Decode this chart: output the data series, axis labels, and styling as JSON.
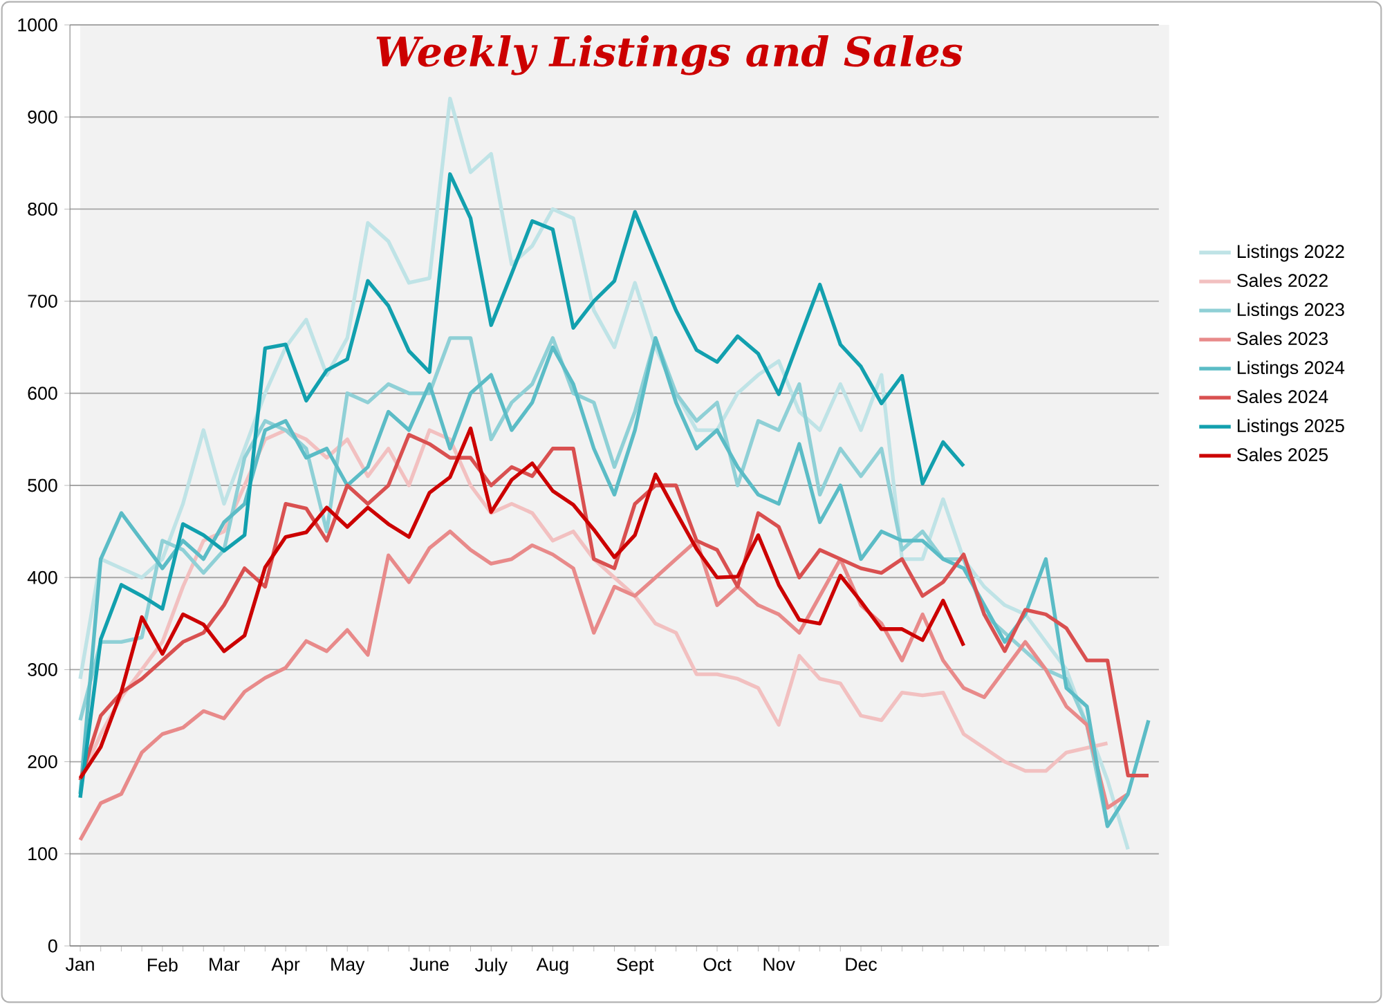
{
  "chart_data": {
    "type": "line",
    "title": "Weekly Listings and Sales",
    "categories": [
      "Jan",
      null,
      null,
      null,
      "Feb",
      null,
      null,
      "Mar",
      null,
      null,
      "Apr",
      null,
      null,
      "May",
      null,
      null,
      null,
      "June",
      null,
      null,
      "July",
      null,
      null,
      "Aug",
      null,
      null,
      null,
      "Sept",
      null,
      null,
      null,
      "Oct",
      null,
      null,
      "Nov",
      null,
      null,
      null,
      "Dec",
      null,
      null,
      null,
      null,
      null,
      null,
      null,
      null,
      null,
      null,
      null,
      null,
      null,
      null
    ],
    "ylim": [
      0,
      1000
    ],
    "yticks": [
      0,
      100,
      200,
      300,
      400,
      500,
      600,
      700,
      800,
      900,
      1000
    ],
    "grid": "y",
    "legend": "right",
    "marker": "none",
    "line_style": "solid",
    "series": [
      {
        "name": "Listings 2022",
        "color": "#bfe3e6",
        "values": [
          290,
          420,
          410,
          400,
          420,
          480,
          560,
          480,
          540,
          600,
          650,
          680,
          620,
          660,
          785,
          765,
          720,
          725,
          920,
          840,
          860,
          740,
          760,
          800,
          790,
          690,
          650,
          720,
          650,
          600,
          560,
          560,
          600,
          620,
          635,
          580,
          560,
          610,
          560,
          620,
          420,
          420,
          485,
          420,
          390,
          370,
          360,
          330,
          300,
          240,
          180,
          105,
          null
        ]
      },
      {
        "name": "Sales 2022",
        "color": "#f2c0c0",
        "values": [
          180,
          230,
          270,
          300,
          330,
          390,
          440,
          450,
          500,
          550,
          560,
          550,
          530,
          550,
          510,
          540,
          500,
          560,
          550,
          500,
          470,
          480,
          470,
          440,
          450,
          420,
          400,
          380,
          350,
          340,
          295,
          295,
          290,
          280,
          240,
          315,
          290,
          285,
          250,
          245,
          275,
          272,
          275,
          230,
          215,
          200,
          190,
          190,
          210,
          215,
          220,
          null,
          null
        ]
      },
      {
        "name": "Listings 2023",
        "color": "#8fd0d6",
        "values": [
          245,
          330,
          330,
          335,
          440,
          430,
          405,
          430,
          530,
          570,
          560,
          540,
          450,
          600,
          590,
          610,
          600,
          600,
          660,
          660,
          550,
          590,
          610,
          660,
          600,
          590,
          520,
          580,
          660,
          600,
          570,
          590,
          500,
          570,
          560,
          610,
          490,
          540,
          510,
          540,
          430,
          450,
          420,
          420,
          360,
          340,
          320,
          300,
          290,
          240,
          130,
          165,
          null
        ]
      },
      {
        "name": "Sales 2023",
        "color": "#e88a8a",
        "values": [
          115,
          155,
          165,
          210,
          230,
          237,
          255,
          247,
          276,
          291,
          302,
          331,
          320,
          343,
          316,
          424,
          395,
          432,
          450,
          430,
          415,
          420,
          435,
          425,
          410,
          340,
          390,
          380,
          400,
          420,
          440,
          370,
          390,
          370,
          360,
          340,
          380,
          420,
          370,
          350,
          310,
          360,
          310,
          280,
          270,
          300,
          330,
          300,
          260,
          240,
          150,
          165,
          null
        ]
      },
      {
        "name": "Listings 2024",
        "color": "#5bbcc6",
        "values": [
          165,
          420,
          470,
          440,
          410,
          440,
          420,
          460,
          480,
          560,
          570,
          530,
          540,
          500,
          520,
          580,
          560,
          610,
          540,
          600,
          620,
          560,
          590,
          650,
          610,
          540,
          490,
          560,
          660,
          590,
          540,
          560,
          520,
          490,
          480,
          545,
          460,
          500,
          420,
          450,
          440,
          440,
          420,
          410,
          370,
          330,
          360,
          420,
          280,
          260,
          130,
          165,
          245
        ]
      },
      {
        "name": "Sales 2024",
        "color": "#d95050",
        "values": [
          180,
          250,
          275,
          290,
          310,
          330,
          340,
          370,
          410,
          390,
          480,
          475,
          440,
          500,
          480,
          500,
          555,
          545,
          530,
          530,
          500,
          520,
          510,
          540,
          540,
          420,
          410,
          480,
          500,
          500,
          440,
          430,
          390,
          470,
          455,
          400,
          430,
          420,
          410,
          405,
          420,
          380,
          395,
          425,
          360,
          320,
          365,
          360,
          345,
          310,
          310,
          185,
          185
        ]
      },
      {
        "name": "Listings 2025",
        "color": "#12a0ae",
        "values": [
          161,
          333,
          392,
          380,
          366,
          458,
          446,
          429,
          446,
          649,
          653,
          592,
          625,
          637,
          722,
          695,
          646,
          623,
          838,
          790,
          674,
          730,
          787,
          778,
          671,
          700,
          722,
          797,
          743,
          690,
          647,
          634,
          662,
          643,
          599,
          659,
          718,
          653,
          629,
          589,
          619,
          502,
          547,
          521,
          null,
          null,
          null,
          null,
          null,
          null,
          null,
          null,
          null
        ]
      },
      {
        "name": "Sales 2025",
        "color": "#cc0000",
        "values": [
          182,
          216,
          276,
          357,
          317,
          360,
          349,
          320,
          337,
          411,
          444,
          449,
          476,
          455,
          476,
          458,
          444,
          492,
          509,
          562,
          471,
          506,
          524,
          494,
          479,
          452,
          422,
          446,
          512,
          471,
          431,
          400,
          401,
          446,
          392,
          354,
          350,
          402,
          374,
          344,
          344,
          332,
          375,
          326,
          null,
          null,
          null,
          null,
          null,
          null,
          null,
          null,
          null
        ]
      }
    ]
  }
}
